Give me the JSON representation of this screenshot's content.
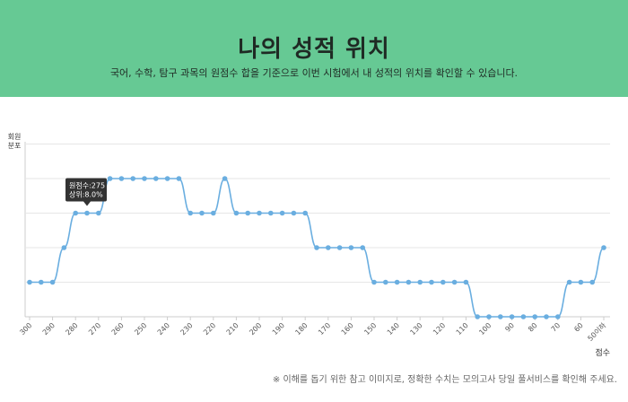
{
  "header": {
    "title": "나의 성적 위치",
    "subtitle": "국어, 수학, 탐구 과목의 원점수 합을 기준으로 이번 시험에서 내 성적의 위치를 확인할 수 있습니다."
  },
  "footnote": "※ 이해를 돕기 위한 참고 이미지로, 정확한 수치는 모의고사 당일 풀서비스를 확인해 주세요.",
  "colors": {
    "header_bg": "#66c994",
    "line": "#6aaee0",
    "tooltip_bg": "#333333"
  },
  "chart_data": {
    "type": "line",
    "ylabel": "회원\n분포",
    "xlabel": "점수",
    "grid": true,
    "legend": "none",
    "ylim": [
      0,
      5
    ],
    "x": [
      "300",
      "295",
      "290",
      "285",
      "280",
      "275",
      "270",
      "265",
      "260",
      "255",
      "250",
      "245",
      "240",
      "235",
      "230",
      "225",
      "220",
      "215",
      "210",
      "205",
      "200",
      "195",
      "190",
      "185",
      "180",
      "175",
      "170",
      "165",
      "160",
      "155",
      "150",
      "145",
      "140",
      "135",
      "130",
      "125",
      "120",
      "115",
      "110",
      "105",
      "100",
      "95",
      "90",
      "85",
      "80",
      "75",
      "70",
      "65",
      "60",
      "55",
      "50이하"
    ],
    "tick_labels": [
      "300",
      "290",
      "280",
      "270",
      "260",
      "250",
      "240",
      "230",
      "220",
      "210",
      "200",
      "190",
      "180",
      "170",
      "160",
      "150",
      "140",
      "130",
      "120",
      "110",
      "100",
      "90",
      "80",
      "70",
      "60",
      "50이하"
    ],
    "values": [
      1,
      1,
      1,
      2,
      3,
      3,
      3,
      4,
      4,
      4,
      4,
      4,
      4,
      4,
      3,
      3,
      3,
      4,
      3,
      3,
      3,
      3,
      3,
      3,
      3,
      2,
      2,
      2,
      2,
      2,
      1,
      1,
      1,
      1,
      1,
      1,
      1,
      1,
      1,
      0,
      0,
      0,
      0,
      0,
      0,
      0,
      0,
      1,
      1,
      1,
      2
    ],
    "tooltip": {
      "index": 5,
      "line1": "원점수:275",
      "line2": "상위:8.0%"
    }
  }
}
